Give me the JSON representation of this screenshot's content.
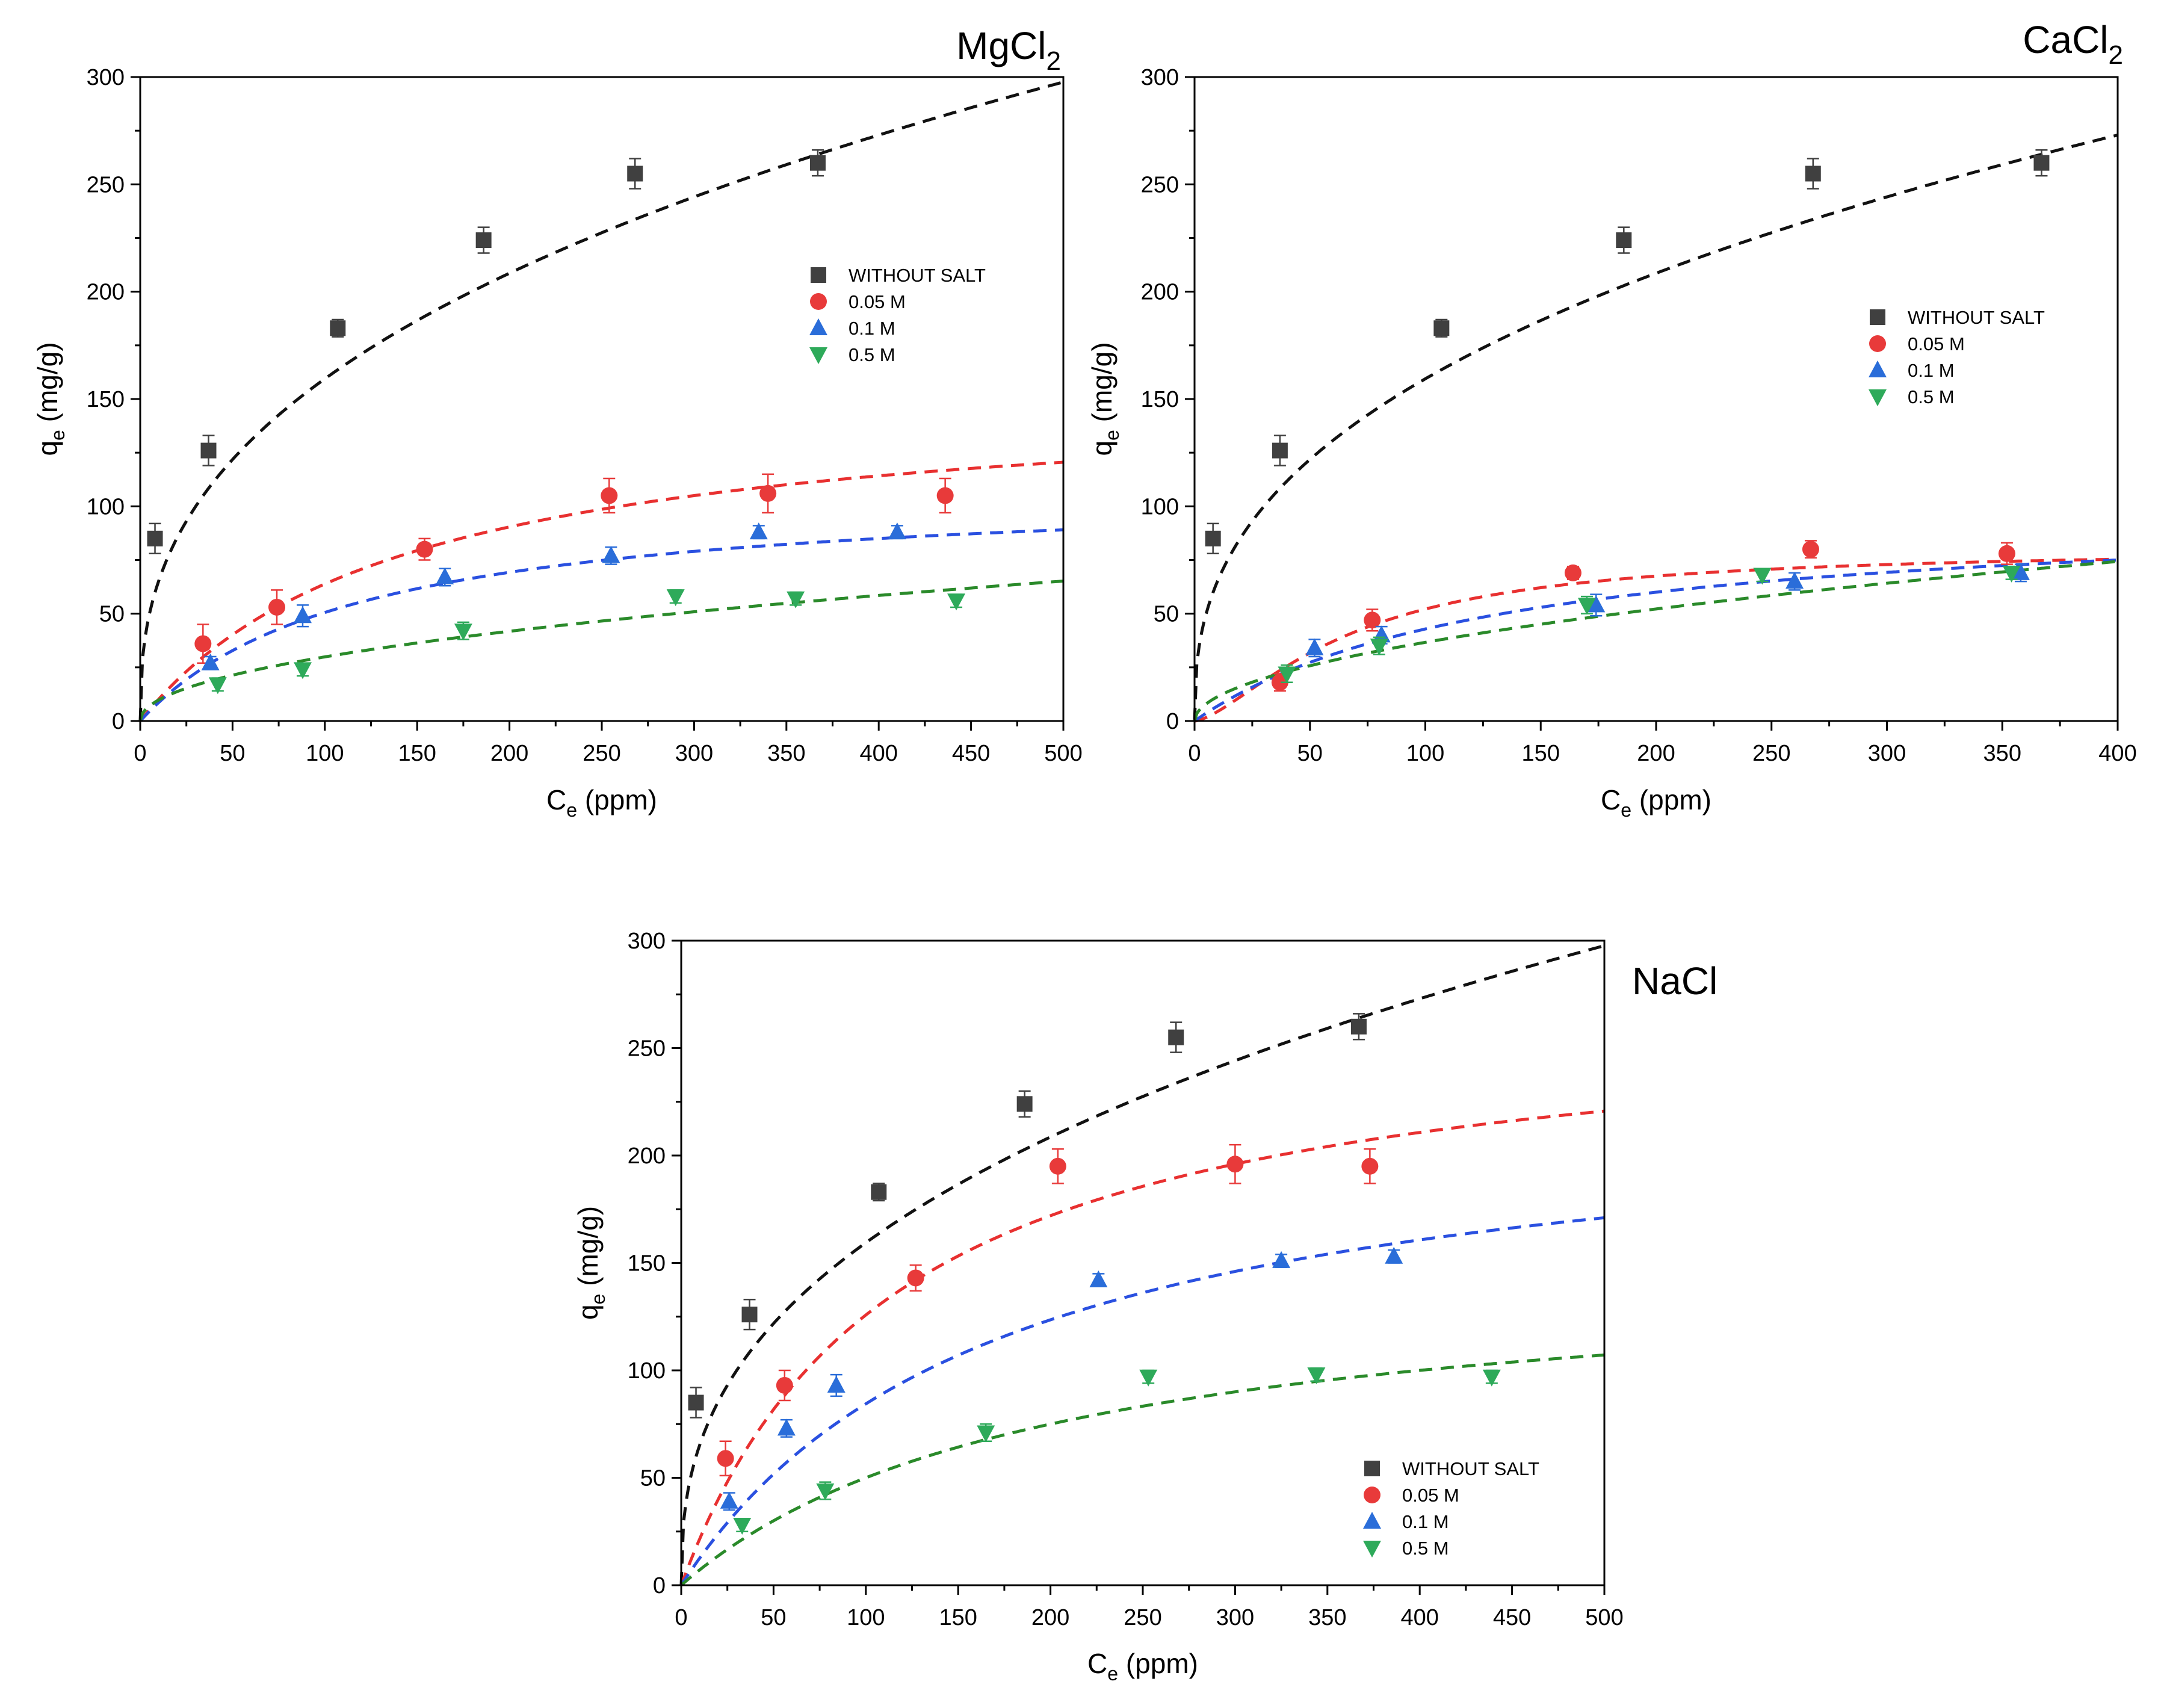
{
  "colors": {
    "without_salt": "#404040",
    "m005": "#e83a3a",
    "m01": "#2a6dd9",
    "m05": "#2eaa5a",
    "fit_without_salt": "#111111",
    "fit_m005": "#e83030",
    "fit_m01": "#2a50e0",
    "fit_m05": "#2a8a2a"
  },
  "legend": [
    "WITHOUT SALT",
    "0.05 M",
    "0.1 M",
    "0.5 M"
  ],
  "markers": {
    "without_salt": "square",
    "m005": "circle",
    "m01": "triangle-up",
    "m05": "triangle-down"
  },
  "chart_data": [
    {
      "id": "mgcl2",
      "type": "scatter",
      "title": {
        "main": "MgCl",
        "sub": "2"
      },
      "xlabel": {
        "main": "C",
        "sub": "e",
        "rest": " (ppm)"
      },
      "ylabel": {
        "main": "q",
        "sub": "e",
        "rest": " (mg/g)"
      },
      "xlim": [
        0,
        500
      ],
      "ylim": [
        0,
        300
      ],
      "xticks": [
        "0",
        "50",
        "100",
        "150",
        "200",
        "250",
        "300",
        "350",
        "400",
        "450",
        "500"
      ],
      "yticks": [
        "0",
        "50",
        "100",
        "150",
        "200",
        "250",
        "300"
      ],
      "legend_position": "right-middle",
      "series": [
        {
          "name": "WITHOUT SALT",
          "key": "without_salt",
          "x": [
            8,
            37,
            107,
            186,
            268,
            367
          ],
          "y": [
            85,
            126,
            183,
            224,
            255,
            260
          ],
          "err": [
            7,
            7,
            4,
            6,
            7,
            6
          ],
          "fit": {
            "model": "freundlich",
            "K": 26.7,
            "n": 0.388
          }
        },
        {
          "name": "0.05 M",
          "key": "m005",
          "x": [
            34,
            74,
            154,
            254,
            340,
            436
          ],
          "y": [
            36,
            53,
            80,
            105,
            106,
            105
          ],
          "err": [
            9,
            8,
            5,
            8,
            9,
            8
          ],
          "fit": {
            "model": "langmuir",
            "qmax": 155,
            "KL": 0.007
          }
        },
        {
          "name": "0.1 M",
          "key": "m01",
          "x": [
            38,
            88,
            165,
            255,
            335,
            410
          ],
          "y": [
            27,
            49,
            67,
            77,
            88,
            88
          ],
          "err": [
            3,
            5,
            4,
            4,
            3,
            3
          ],
          "fit": {
            "model": "langmuir",
            "qmax": 110,
            "KL": 0.0085
          }
        },
        {
          "name": "0.5 M",
          "key": "m05",
          "x": [
            42,
            88,
            175,
            290,
            355,
            442
          ],
          "y": [
            17,
            24,
            42,
            58,
            57,
            56
          ],
          "err": [
            3,
            3,
            4,
            3,
            3,
            3
          ],
          "fit": {
            "model": "freundlich",
            "K": 3.2,
            "n": 0.485
          }
        }
      ]
    },
    {
      "id": "cacl2",
      "type": "scatter",
      "title": {
        "main": "CaCl",
        "sub": "2"
      },
      "xlabel": {
        "main": "C",
        "sub": "e",
        "rest": " (ppm)"
      },
      "ylabel": {
        "main": "q",
        "sub": "e",
        "rest": " (mg/g)"
      },
      "xlim": [
        0,
        400
      ],
      "ylim": [
        0,
        300
      ],
      "xticks": [
        "0",
        "50",
        "100",
        "150",
        "200",
        "250",
        "300",
        "350",
        "400"
      ],
      "yticks": [
        "0",
        "50",
        "100",
        "150",
        "200",
        "250",
        "300"
      ],
      "legend_position": "right-middle",
      "series": [
        {
          "name": "WITHOUT SALT",
          "key": "without_salt",
          "x": [
            8,
            37,
            107,
            186,
            268,
            367
          ],
          "y": [
            85,
            126,
            183,
            224,
            255,
            260
          ],
          "err": [
            7,
            7,
            4,
            6,
            7,
            6
          ],
          "fit": {
            "model": "freundlich",
            "K": 26.7,
            "n": 0.388
          }
        },
        {
          "name": "0.05 M",
          "key": "m005",
          "x": [
            37,
            77,
            164,
            267,
            352
          ],
          "y": [
            18,
            47,
            69,
            80,
            78
          ],
          "err": [
            4,
            5,
            3,
            4,
            5
          ],
          "fit": {
            "model": "sips",
            "qmax": 80.5,
            "KL": 0.015,
            "m": 1.5
          }
        },
        {
          "name": "0.1 M",
          "key": "m01",
          "x": [
            52,
            81,
            174,
            260,
            358
          ],
          "y": [
            34,
            40,
            54,
            65,
            69
          ],
          "err": [
            4,
            4,
            5,
            4,
            4
          ],
          "fit": {
            "model": "langmuir",
            "qmax": 100,
            "KL": 0.0075
          }
        },
        {
          "name": "0.5 M",
          "key": "m05",
          "x": [
            40,
            80,
            170,
            246,
            354
          ],
          "y": [
            22,
            35,
            54,
            68,
            69
          ],
          "err": [
            4,
            4,
            4,
            3,
            3
          ],
          "fit": {
            "model": "freundlich",
            "K": 3.5,
            "n": 0.51
          }
        }
      ]
    },
    {
      "id": "nacl",
      "type": "scatter",
      "title": {
        "main": "NaCl",
        "sub": ""
      },
      "xlabel": {
        "main": "C",
        "sub": "e",
        "rest": " (ppm)"
      },
      "ylabel": {
        "main": "q",
        "sub": "e",
        "rest": " (mg/g)"
      },
      "xlim": [
        0,
        500
      ],
      "ylim": [
        0,
        300
      ],
      "xticks": [
        "0",
        "50",
        "100",
        "150",
        "200",
        "250",
        "300",
        "350",
        "400",
        "450",
        "500"
      ],
      "yticks": [
        "0",
        "50",
        "100",
        "150",
        "200",
        "250",
        "300"
      ],
      "legend_position": "bottom-right",
      "series": [
        {
          "name": "WITHOUT SALT",
          "key": "without_salt",
          "x": [
            8,
            37,
            107,
            186,
            268,
            367
          ],
          "y": [
            85,
            126,
            183,
            224,
            255,
            260
          ],
          "err": [
            7,
            7,
            4,
            6,
            7,
            6
          ],
          "fit": {
            "model": "freundlich",
            "K": 26.7,
            "n": 0.388
          }
        },
        {
          "name": "0.05 M",
          "key": "m005",
          "x": [
            24,
            56,
            127,
            204,
            300,
            373
          ],
          "y": [
            59,
            93,
            143,
            195,
            196,
            195
          ],
          "err": [
            8,
            7,
            6,
            8,
            9,
            8
          ],
          "fit": {
            "model": "langmuir",
            "qmax": 272,
            "KL": 0.0086
          }
        },
        {
          "name": "0.1 M",
          "key": "m01",
          "x": [
            26,
            57,
            84,
            226,
            325,
            386
          ],
          "y": [
            39,
            73,
            93,
            142,
            151,
            153
          ],
          "err": [
            4,
            4,
            5,
            3,
            3,
            3
          ],
          "fit": {
            "model": "langmuir",
            "qmax": 230,
            "KL": 0.0058
          }
        },
        {
          "name": "0.5 M",
          "key": "m05",
          "x": [
            33,
            78,
            165,
            253,
            344,
            439
          ],
          "y": [
            28,
            44,
            71,
            97,
            98,
            97
          ],
          "err": [
            3,
            4,
            4,
            3,
            3,
            3
          ],
          "fit": {
            "model": "langmuir",
            "qmax": 150,
            "KL": 0.005
          }
        }
      ]
    }
  ]
}
